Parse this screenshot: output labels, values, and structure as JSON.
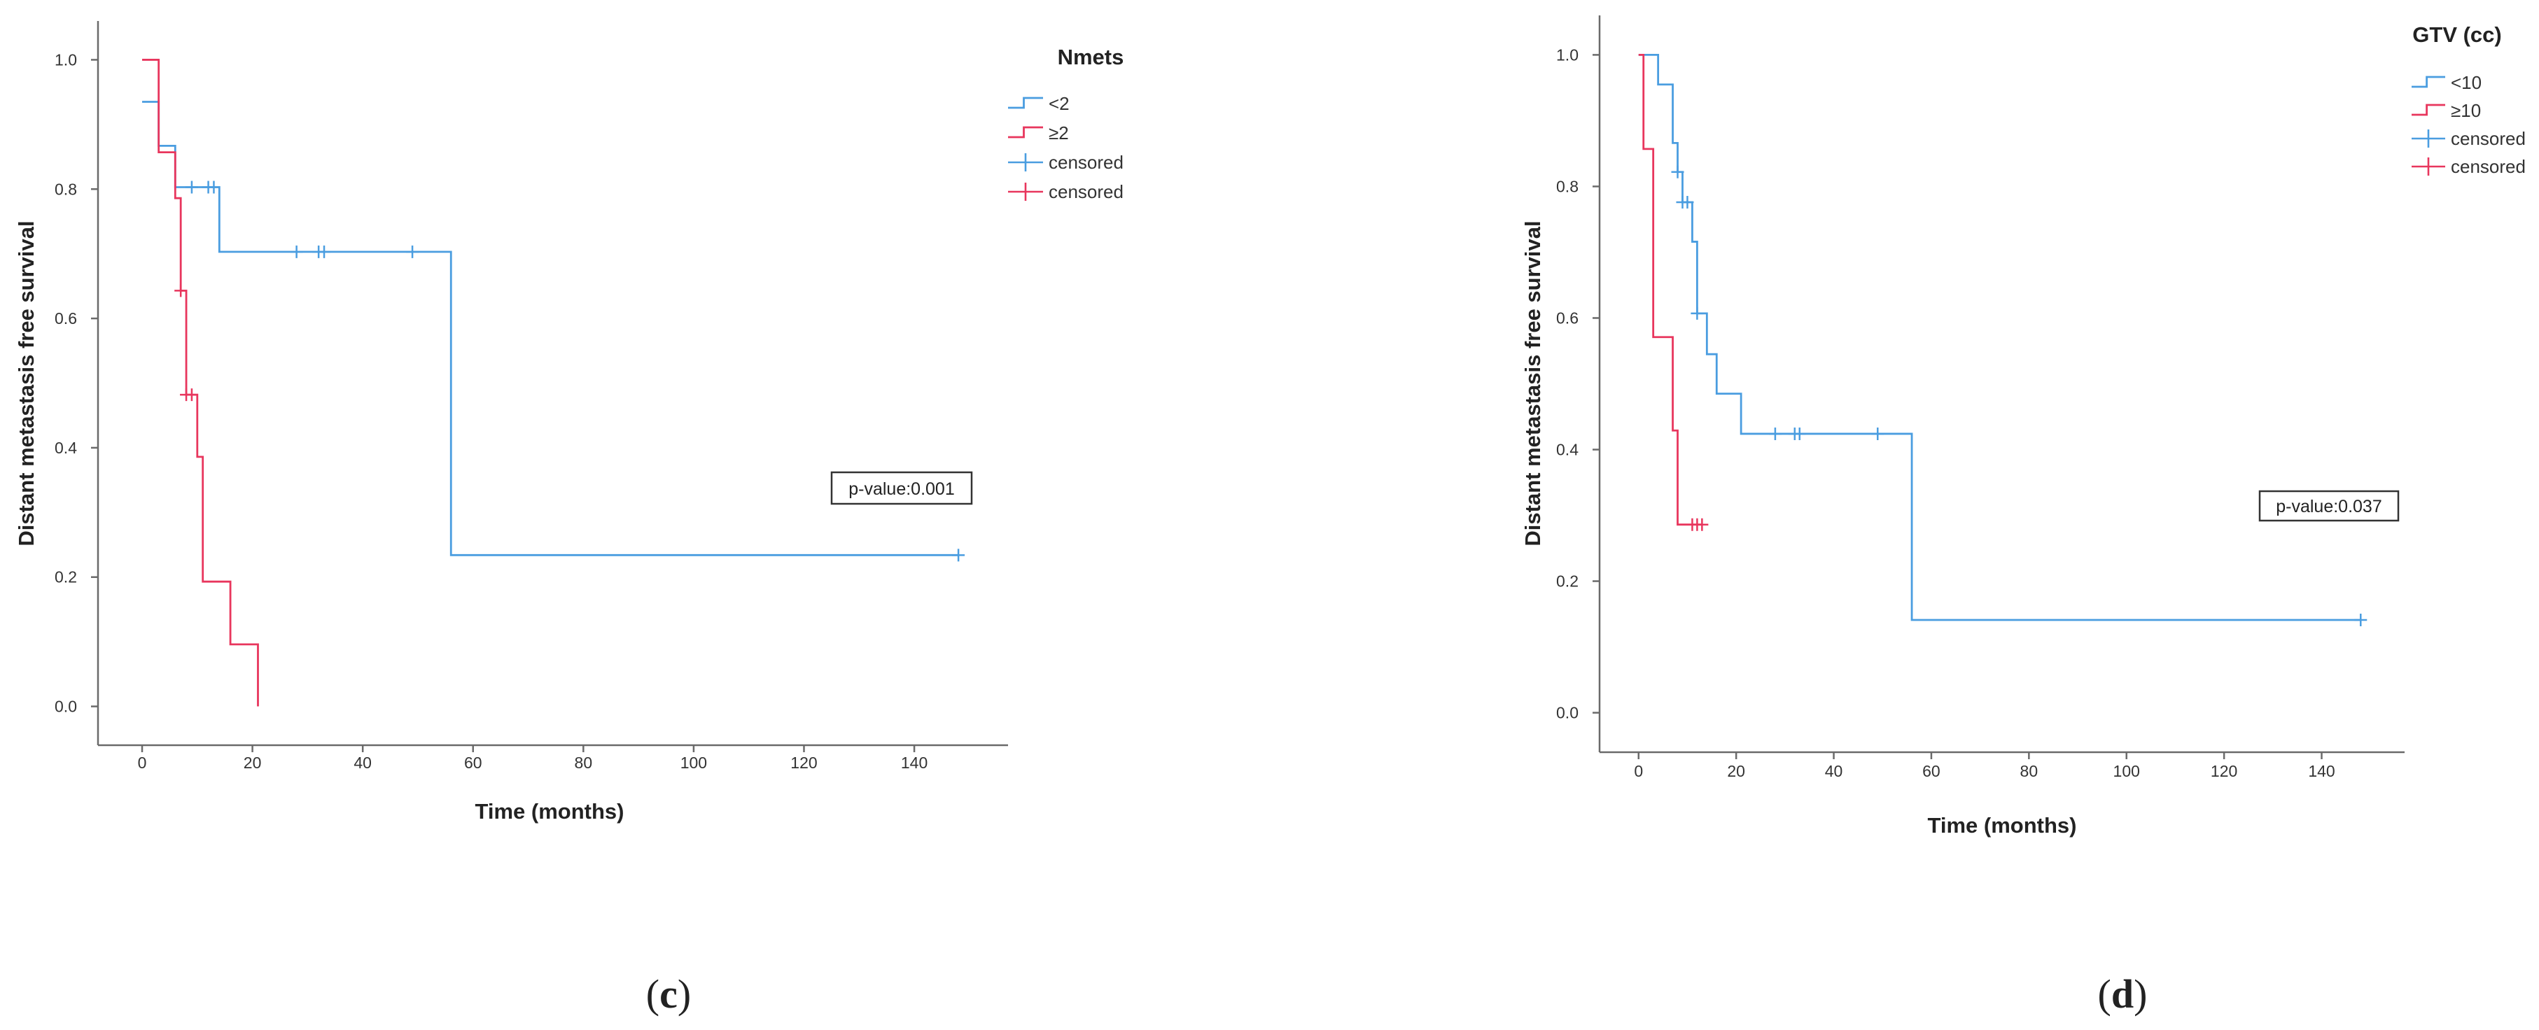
{
  "chart_data": [
    {
      "type": "line",
      "subtype": "kaplan-meier",
      "panel_label": {
        "open": "(",
        "letter": "c",
        "close": ")"
      },
      "xlabel": "Time (months)",
      "ylabel": "Distant metastasis free survival",
      "xlim": [
        -8,
        157
      ],
      "ylim": [
        -0.06,
        1.06
      ],
      "xticks": [
        0,
        20,
        40,
        60,
        80,
        100,
        120,
        140
      ],
      "yticks": [
        0.0,
        0.2,
        0.4,
        0.6,
        0.8,
        1.0
      ],
      "ytick_labels": [
        "0.0",
        "0.2",
        "0.4",
        "0.6",
        "0.8",
        "1.0"
      ],
      "legend_title": "Nmets",
      "legend": [
        {
          "label": "<2",
          "kind": "step",
          "color": "#4a9de0"
        },
        {
          "label": "≥2",
          "kind": "step",
          "color": "#e8365d"
        },
        {
          "label": "censored",
          "kind": "censor",
          "color": "#4a9de0"
        },
        {
          "label": "censored",
          "kind": "censor",
          "color": "#e8365d"
        }
      ],
      "annotation": "p-value:0.001",
      "series": [
        {
          "name": "<2",
          "color": "#4a9de0",
          "steps": [
            [
              0,
              0.935
            ],
            [
              3,
              0.867
            ],
            [
              6,
              0.803
            ],
            [
              14,
              0.703
            ],
            [
              56,
              0.234
            ],
            [
              148,
              0.234
            ]
          ],
          "censored": [
            [
              9,
              0.803
            ],
            [
              12,
              0.803
            ],
            [
              13,
              0.803
            ],
            [
              28,
              0.703
            ],
            [
              32,
              0.703
            ],
            [
              33,
              0.703
            ],
            [
              49,
              0.703
            ],
            [
              148,
              0.234
            ]
          ]
        },
        {
          "name": "≥2",
          "color": "#e8365d",
          "steps": [
            [
              0,
              1.0
            ],
            [
              3,
              0.857
            ],
            [
              6,
              0.786
            ],
            [
              7,
              0.643
            ],
            [
              8,
              0.482
            ],
            [
              10,
              0.386
            ],
            [
              11,
              0.193
            ],
            [
              16,
              0.096
            ],
            [
              21,
              0.0
            ]
          ],
          "censored": [
            [
              7,
              0.643
            ],
            [
              8,
              0.482
            ],
            [
              9,
              0.482
            ]
          ]
        }
      ]
    },
    {
      "type": "line",
      "subtype": "kaplan-meier",
      "panel_label": {
        "open": "(",
        "letter": "d",
        "close": ")"
      },
      "xlabel": "Time (months)",
      "ylabel": "Distant metastasis free survival",
      "xlim": [
        -8,
        157
      ],
      "ylim": [
        -0.06,
        1.06
      ],
      "xticks": [
        0,
        20,
        40,
        60,
        80,
        100,
        120,
        140
      ],
      "yticks": [
        0.0,
        0.2,
        0.4,
        0.6,
        0.8,
        1.0
      ],
      "ytick_labels": [
        "0.0",
        "0.2",
        "0.4",
        "0.6",
        "0.8",
        "1.0"
      ],
      "legend_title": "GTV (cc)",
      "legend": [
        {
          "label": "<10",
          "kind": "step",
          "color": "#4a9de0"
        },
        {
          "label": "≥10",
          "kind": "step",
          "color": "#e8365d"
        },
        {
          "label": "censored",
          "kind": "censor",
          "color": "#4a9de0"
        },
        {
          "label": "censored",
          "kind": "censor",
          "color": "#e8365d"
        }
      ],
      "annotation": "p-value:0.037",
      "series": [
        {
          "name": "<10",
          "color": "#4a9de0",
          "steps": [
            [
              0,
              1.0
            ],
            [
              4,
              0.955
            ],
            [
              7,
              0.866
            ],
            [
              8,
              0.822
            ],
            [
              9,
              0.776
            ],
            [
              11,
              0.716
            ],
            [
              12,
              0.607
            ],
            [
              14,
              0.545
            ],
            [
              16,
              0.485
            ],
            [
              21,
              0.424
            ],
            [
              56,
              0.141
            ],
            [
              148,
              0.141
            ]
          ],
          "censored": [
            [
              8,
              0.822
            ],
            [
              9,
              0.776
            ],
            [
              10,
              0.776
            ],
            [
              12,
              0.607
            ],
            [
              28,
              0.424
            ],
            [
              32,
              0.424
            ],
            [
              33,
              0.424
            ],
            [
              49,
              0.424
            ],
            [
              148,
              0.141
            ]
          ]
        },
        {
          "name": "≥10",
          "color": "#e8365d",
          "steps": [
            [
              0,
              1.0
            ],
            [
              1,
              0.857
            ],
            [
              3,
              0.571
            ],
            [
              7,
              0.429
            ],
            [
              8,
              0.286
            ],
            [
              13,
              0.286
            ]
          ],
          "censored": [
            [
              11,
              0.286
            ],
            [
              12,
              0.286
            ],
            [
              13,
              0.286
            ]
          ]
        }
      ]
    }
  ]
}
